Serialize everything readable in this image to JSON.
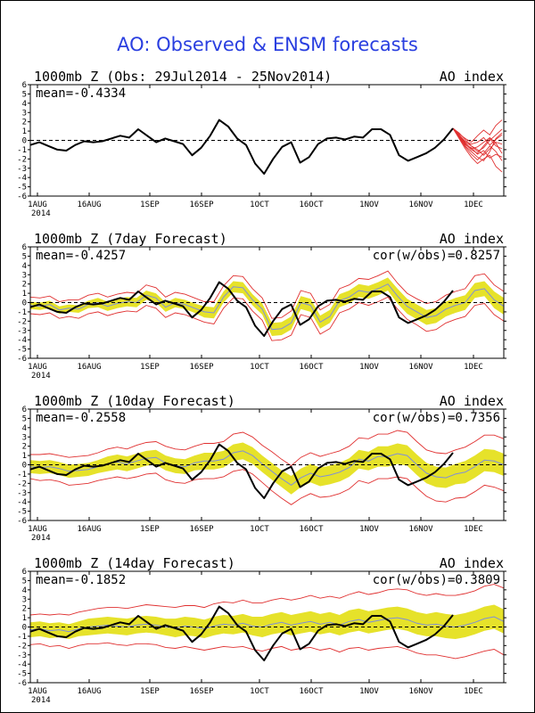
{
  "title": "AO: Observed & ENSM forecasts",
  "colors": {
    "title": "#2a3fe0",
    "observed": "#000000",
    "spread_fill": "#e6e22a",
    "ensemble_members": "#e03030",
    "ensemble_mean": "#7f8fd8",
    "zero_line": "#000000"
  },
  "x_axis": {
    "ticks": [
      "1AUG",
      "16AUG",
      "1SEP",
      "16SEP",
      "1OCT",
      "16OCT",
      "1NOV",
      "16NOV",
      "1DEC"
    ],
    "year_label": "2014"
  },
  "chart_data": [
    {
      "type": "line",
      "title": "1000mb Z (Obs: 29Jul2014 - 25Nov2014)",
      "right_label": "AO index",
      "mean": "mean=-0.4334",
      "ylim": [
        -6,
        6
      ],
      "x": [
        "29Jul2014",
        "25Nov2014"
      ],
      "observed": [
        -0.5,
        -0.2,
        -0.6,
        -1.0,
        -1.1,
        -0.5,
        -0.1,
        -0.2,
        -0.1,
        0.2,
        0.5,
        0.3,
        1.2,
        0.5,
        -0.2,
        0.2,
        -0.1,
        -0.4,
        -1.6,
        -0.8,
        0.5,
        2.2,
        1.5,
        0.2,
        -0.5,
        -2.5,
        -3.6,
        -2.0,
        -0.7,
        -0.2,
        -2.4,
        -1.8,
        -0.4,
        0.2,
        0.3,
        0.1,
        0.4,
        0.3,
        1.2,
        1.2,
        0.6,
        -1.6,
        -2.2,
        -1.8,
        -1.4,
        -0.8,
        0.1,
        1.3
      ],
      "ensemble_forecasts": [
        [
          1.3,
          0.6,
          -0.2,
          -0.6,
          -1.2,
          -0.8,
          0.0,
          0.6,
          1.2
        ],
        [
          1.3,
          0.4,
          -0.6,
          -1.2,
          -1.8,
          -2.2,
          -1.2,
          0.2,
          0.8
        ],
        [
          1.3,
          0.5,
          -0.3,
          -0.9,
          -0.7,
          -0.2,
          0.3,
          -0.3,
          -1.4
        ],
        [
          1.3,
          0.3,
          -0.7,
          -1.5,
          -2.1,
          -1.4,
          -0.6,
          -1.2,
          -2.2
        ],
        [
          1.3,
          0.7,
          0.2,
          -0.2,
          0.5,
          1.1,
          0.6,
          1.6,
          2.2
        ],
        [
          1.3,
          0.2,
          -0.9,
          -1.8,
          -2.5,
          -2.0,
          -1.6,
          -2.8,
          -3.4
        ],
        [
          1.3,
          0.6,
          -0.1,
          -0.4,
          -0.2,
          0.3,
          -0.5,
          0.1,
          0.6
        ],
        [
          1.3,
          0.4,
          -0.4,
          -1.0,
          -1.4,
          -0.6,
          0.2,
          -0.6,
          -0.9
        ],
        [
          1.3,
          0.8,
          0.1,
          -0.6,
          -1.0,
          -1.6,
          -0.9,
          -0.2,
          -0.4
        ],
        [
          1.3,
          0.5,
          -0.5,
          -0.8,
          -1.5,
          -1.1,
          -1.9,
          -1.5,
          -1.8
        ]
      ]
    },
    {
      "type": "line",
      "title": "1000mb Z (7day Forecast)",
      "right_label": "AO index",
      "mean": "mean=-0.4257",
      "cor": "cor(w/obs)=0.8257",
      "ylim": [
        -6,
        6
      ],
      "observed": [
        -0.5,
        -0.2,
        -0.6,
        -1.0,
        -1.1,
        -0.5,
        -0.1,
        -0.2,
        -0.1,
        0.2,
        0.5,
        0.3,
        1.2,
        0.5,
        -0.2,
        0.2,
        -0.1,
        -0.4,
        -1.6,
        -0.8,
        0.5,
        2.2,
        1.5,
        0.2,
        -0.5,
        -2.5,
        -3.6,
        -2.0,
        -0.7,
        -0.2,
        -2.4,
        -1.8,
        -0.4,
        0.2,
        0.3,
        0.1,
        0.4,
        0.3,
        1.2,
        1.2,
        0.6,
        -1.6,
        -2.2,
        -1.8,
        -1.4,
        -0.8,
        0.1,
        1.3
      ],
      "forecast_mean": [
        -0.3,
        -0.4,
        -0.2,
        -0.8,
        -0.6,
        -0.7,
        -0.2,
        0.0,
        -0.4,
        -0.1,
        0.1,
        0.0,
        0.8,
        0.5,
        -0.5,
        0.0,
        -0.2,
        -0.6,
        -1.0,
        -1.1,
        0.6,
        1.7,
        1.6,
        0.3,
        -0.7,
        -2.9,
        -2.8,
        -2.2,
        0.0,
        -0.3,
        -2.1,
        -1.5,
        0.2,
        0.6,
        1.3,
        1.1,
        1.5,
        2.0,
        0.7,
        -0.4,
        -1.0,
        -1.6,
        -1.4,
        -0.7,
        -0.3,
        0.0,
        1.3,
        1.5,
        0.3,
        -0.4
      ],
      "spread": [
        0.4,
        0.4,
        0.4,
        0.4,
        0.4,
        0.4,
        0.4,
        0.5,
        0.5,
        0.5,
        0.5,
        0.5,
        0.5,
        0.5,
        0.5,
        0.5,
        0.5,
        0.5,
        0.6,
        0.6,
        0.6,
        0.6,
        0.6,
        0.6,
        0.6,
        0.7,
        0.7,
        0.7,
        0.7,
        0.7,
        0.7,
        0.7,
        0.7,
        0.7,
        0.7,
        0.7,
        0.7,
        0.7,
        0.8,
        0.8,
        0.8,
        0.8,
        0.8,
        0.8,
        0.8,
        0.8,
        0.8,
        0.8,
        0.9,
        0.9
      ],
      "envelope": [
        0.9,
        0.9,
        0.9,
        0.9,
        0.9,
        1.0,
        1.0,
        1.0,
        1.0,
        1.0,
        1.0,
        1.0,
        1.1,
        1.1,
        1.1,
        1.1,
        1.1,
        1.1,
        1.1,
        1.2,
        1.2,
        1.2,
        1.2,
        1.2,
        1.2,
        1.2,
        1.2,
        1.3,
        1.3,
        1.3,
        1.3,
        1.3,
        1.3,
        1.3,
        1.3,
        1.4,
        1.4,
        1.4,
        1.4,
        1.4,
        1.4,
        1.5,
        1.5,
        1.5,
        1.5,
        1.5,
        1.6,
        1.6,
        1.6,
        1.6
      ]
    },
    {
      "type": "line",
      "title": "1000mb Z (10day Forecast)",
      "right_label": "AO index",
      "mean": "mean=-0.2558",
      "cor": "cor(w/obs)=0.7356",
      "ylim": [
        -6,
        6
      ],
      "observed": [
        -0.5,
        -0.2,
        -0.6,
        -1.0,
        -1.1,
        -0.5,
        -0.1,
        -0.2,
        -0.1,
        0.2,
        0.5,
        0.3,
        1.2,
        0.5,
        -0.2,
        0.2,
        -0.1,
        -0.4,
        -1.6,
        -0.8,
        0.5,
        2.2,
        1.5,
        0.2,
        -0.5,
        -2.5,
        -3.6,
        -2.0,
        -0.7,
        -0.2,
        -2.4,
        -1.8,
        -0.4,
        0.2,
        0.3,
        0.1,
        0.4,
        0.3,
        1.2,
        1.2,
        0.6,
        -1.6,
        -2.2,
        -1.8,
        -1.4,
        -0.8,
        0.1,
        1.3
      ],
      "forecast_mean": [
        -0.2,
        -0.3,
        -0.2,
        -0.4,
        -0.7,
        -0.6,
        -0.5,
        -0.2,
        0.1,
        0.3,
        0.1,
        0.4,
        0.7,
        0.8,
        0.2,
        -0.1,
        -0.2,
        0.2,
        0.4,
        0.4,
        0.6,
        1.3,
        1.5,
        1.0,
        0.1,
        -0.7,
        -1.5,
        -2.2,
        -1.4,
        -0.9,
        -1.3,
        -1.1,
        -0.8,
        -0.3,
        0.6,
        0.4,
        0.9,
        0.9,
        1.2,
        1.0,
        0.0,
        -0.9,
        -1.3,
        -1.4,
        -1.0,
        -0.8,
        -0.2,
        0.5,
        0.4,
        0.0
      ],
      "spread": [
        0.7,
        0.7,
        0.7,
        0.7,
        0.7,
        0.7,
        0.7,
        0.7,
        0.8,
        0.8,
        0.8,
        0.8,
        0.8,
        0.8,
        0.8,
        0.8,
        0.8,
        0.8,
        0.9,
        0.9,
        0.9,
        0.9,
        0.9,
        0.9,
        0.9,
        0.9,
        0.9,
        1.0,
        1.0,
        1.0,
        1.0,
        1.0,
        1.0,
        1.0,
        1.0,
        1.0,
        1.1,
        1.1,
        1.1,
        1.1,
        1.1,
        1.1,
        1.1,
        1.1,
        1.1,
        1.2,
        1.2,
        1.2,
        1.2,
        1.2
      ],
      "envelope": [
        1.3,
        1.4,
        1.4,
        1.4,
        1.5,
        1.5,
        1.5,
        1.5,
        1.6,
        1.6,
        1.6,
        1.7,
        1.7,
        1.7,
        1.8,
        1.8,
        1.8,
        1.8,
        1.9,
        1.9,
        1.9,
        2.0,
        2.0,
        2.0,
        2.0,
        2.1,
        2.1,
        2.1,
        2.2,
        2.2,
        2.2,
        2.3,
        2.3,
        2.3,
        2.3,
        2.4,
        2.4,
        2.4,
        2.5,
        2.5,
        2.5,
        2.5,
        2.6,
        2.6,
        2.6,
        2.7,
        2.7,
        2.7,
        2.8,
        2.8
      ]
    },
    {
      "type": "line",
      "title": "1000mb Z (14day Forecast)",
      "right_label": "AO index",
      "mean": "mean=-0.1852",
      "cor": "cor(w/obs)=0.3809",
      "ylim": [
        -6,
        6
      ],
      "observed": [
        -0.5,
        -0.2,
        -0.6,
        -1.0,
        -1.1,
        -0.5,
        -0.1,
        -0.2,
        -0.1,
        0.2,
        0.5,
        0.3,
        1.2,
        0.5,
        -0.2,
        0.2,
        -0.1,
        -0.4,
        -1.6,
        -0.8,
        0.5,
        2.2,
        1.5,
        0.2,
        -0.5,
        -2.5,
        -3.6,
        -2.0,
        -0.7,
        -0.2,
        -2.4,
        -1.8,
        -0.4,
        0.2,
        0.3,
        0.1,
        0.4,
        0.3,
        1.2,
        1.2,
        0.6,
        -1.6,
        -2.2,
        -1.8,
        -1.4,
        -0.8,
        0.1,
        1.3
      ],
      "forecast_mean": [
        -0.3,
        -0.2,
        -0.4,
        -0.3,
        -0.5,
        -0.2,
        0.0,
        0.1,
        0.2,
        0.1,
        0.0,
        0.2,
        0.3,
        0.2,
        0.0,
        -0.1,
        0.1,
        0.0,
        -0.2,
        0.1,
        0.3,
        0.2,
        0.4,
        0.1,
        0.0,
        0.3,
        0.5,
        0.2,
        0.4,
        0.6,
        0.3,
        0.5,
        0.2,
        0.6,
        0.8,
        0.5,
        0.7,
        0.9,
        1.0,
        0.8,
        0.4,
        0.2,
        0.3,
        0.1,
        0.0,
        0.2,
        0.5,
        0.9,
        1.1,
        0.6
      ],
      "spread": [
        0.8,
        0.8,
        0.8,
        0.8,
        0.8,
        0.8,
        0.9,
        0.9,
        0.9,
        0.9,
        0.9,
        0.9,
        0.9,
        0.9,
        0.9,
        1.0,
        1.0,
        1.0,
        1.0,
        1.0,
        1.0,
        1.0,
        1.0,
        1.0,
        1.1,
        1.1,
        1.1,
        1.1,
        1.1,
        1.1,
        1.1,
        1.1,
        1.1,
        1.2,
        1.2,
        1.2,
        1.2,
        1.2,
        1.2,
        1.2,
        1.2,
        1.2,
        1.3,
        1.3,
        1.3,
        1.3,
        1.3,
        1.3,
        1.3,
        1.3
      ],
      "envelope": [
        1.6,
        1.6,
        1.7,
        1.7,
        1.8,
        1.8,
        1.8,
        1.9,
        1.9,
        2.0,
        2.0,
        2.0,
        2.1,
        2.1,
        2.2,
        2.2,
        2.2,
        2.3,
        2.3,
        2.4,
        2.4,
        2.4,
        2.5,
        2.5,
        2.6,
        2.6,
        2.6,
        2.7,
        2.7,
        2.8,
        2.8,
        2.8,
        2.9,
        2.9,
        3.0,
        3.0,
        3.0,
        3.1,
        3.1,
        3.2,
        3.2,
        3.2,
        3.3,
        3.3,
        3.4,
        3.4,
        3.4,
        3.5,
        3.5,
        3.6
      ]
    }
  ]
}
